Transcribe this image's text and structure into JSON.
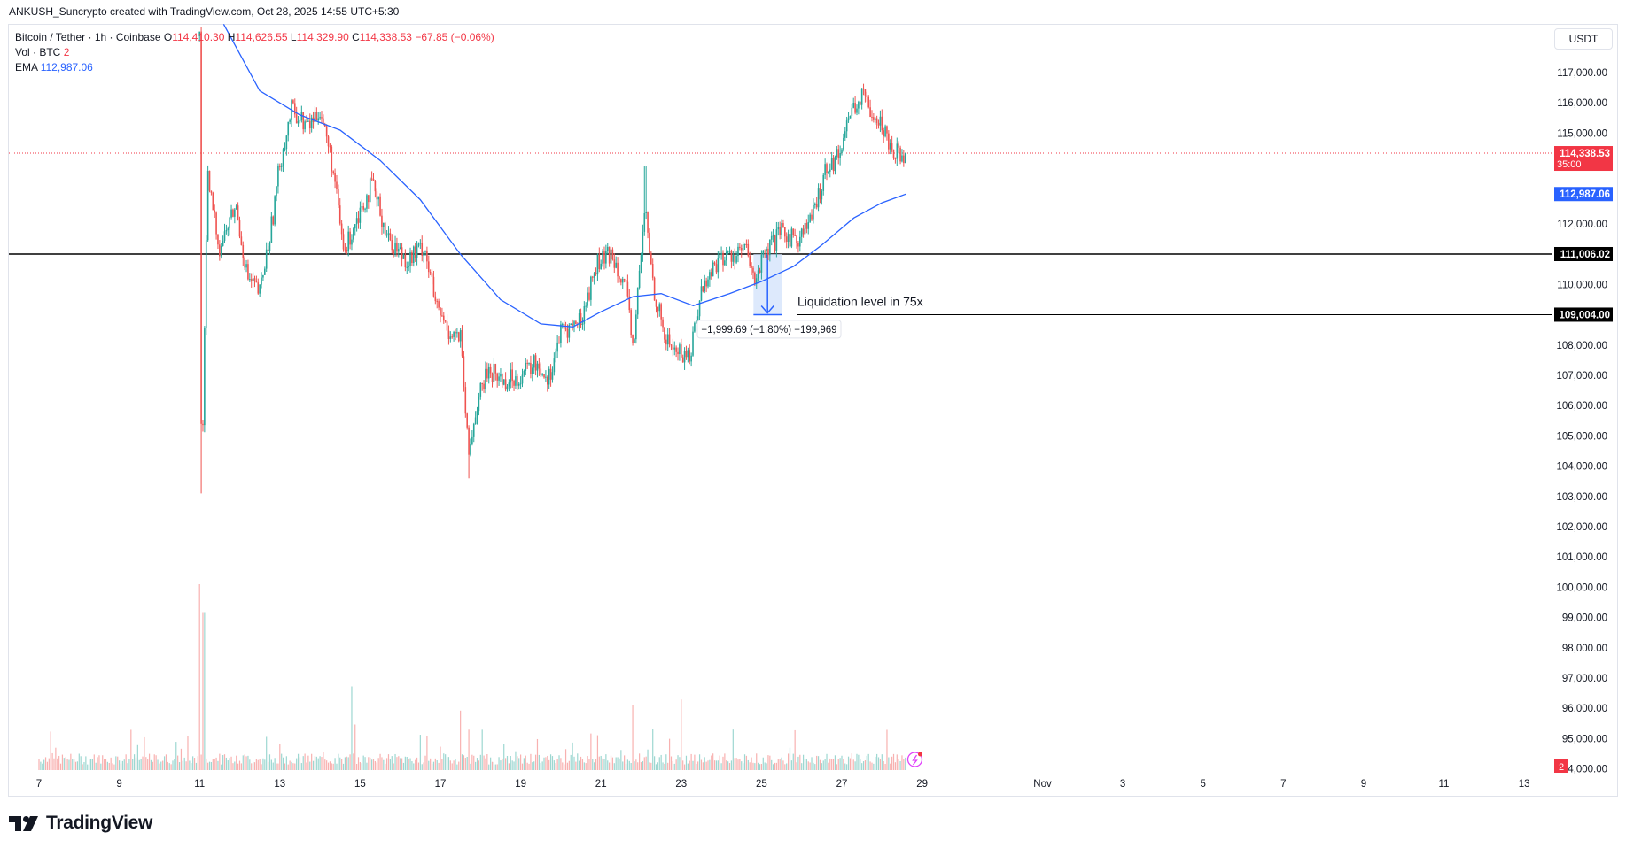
{
  "header": {
    "attribution": "ANKUSH_Suncrypto created with TradingView.com, Oct 28, 2025 14:55 UTC+5:30"
  },
  "legend": {
    "symbol": "Bitcoin / Tether · 1h · Coinbase",
    "o_label": "O",
    "o_value": "114,410.30",
    "h_label": "H",
    "h_value": "114,626.55",
    "l_label": "L",
    "l_value": "114,329.90",
    "c_label": "C",
    "c_value": "114,338.53",
    "change": "−67.85 (−0.06%)",
    "vol_label": "Vol · BTC",
    "vol_value": "2",
    "ema_label": "EMA",
    "ema_value": "112,987.06"
  },
  "currency": "USDT",
  "price_axis": {
    "ticks": [
      "117,000.00",
      "116,000.00",
      "115,000.00",
      "114,000.00",
      "113,000.00",
      "112,000.00",
      "111,000.00",
      "110,000.00",
      "109,000.00",
      "108,000.00",
      "107,000.00",
      "106,000.00",
      "105,000.00",
      "104,000.00",
      "103,000.00",
      "102,000.00",
      "101,000.00",
      "100,000.00",
      "99,000.00",
      "98,000.00",
      "97,000.00",
      "96,000.00",
      "95,000.00",
      "94,000.00"
    ],
    "tick_values": [
      117000,
      116000,
      115000,
      114000,
      113000,
      112000,
      111000,
      110000,
      109000,
      108000,
      107000,
      106000,
      105000,
      104000,
      103000,
      102000,
      101000,
      100000,
      99000,
      98000,
      97000,
      96000,
      95000,
      94000
    ],
    "min": 93100,
    "max": 118500,
    "last_price_label": "114,338.53",
    "countdown": "35:00",
    "ema_label": "112,987.06",
    "level1_label": "111,006.02",
    "level2_label": "109,004.00",
    "volume_badge": "2"
  },
  "time_axis": {
    "labels": [
      "7",
      "9",
      "11",
      "13",
      "15",
      "17",
      "19",
      "21",
      "23",
      "25",
      "27",
      "29",
      "Nov",
      "3",
      "5",
      "7",
      "9",
      "11",
      "13"
    ],
    "label_days": [
      7,
      9,
      11,
      13,
      15,
      17,
      19,
      21,
      23,
      25,
      27,
      29,
      32,
      34,
      36,
      38,
      40,
      42,
      44
    ]
  },
  "annotations": {
    "liquidation_text": "Liquidation level in 75x",
    "measure_text": "−1,999.69 (−1.80%) −199,969"
  },
  "colors": {
    "up": "#26a69a",
    "down": "#ef5350",
    "ema": "#2962ff",
    "price_line": "#f23645",
    "level": "#000000",
    "measure_fill": "#cfe0fb"
  },
  "brand": {
    "name": "TradingView"
  },
  "chart_data": {
    "type": "candlestick",
    "title": "Bitcoin / Tether · 1h · Coinbase",
    "timeframe": "1h",
    "x_range_days": [
      "Oct 7",
      "Nov 13"
    ],
    "last_price": 114338.53,
    "ema_last": 112987.06,
    "horizontal_levels": [
      111006.02,
      109004.0
    ],
    "price_path": [
      {
        "day": 11.0,
        "price": 118200
      },
      {
        "day": 11.05,
        "price": 103100
      },
      {
        "day": 11.2,
        "price": 113500
      },
      {
        "day": 11.5,
        "price": 111200
      },
      {
        "day": 11.9,
        "price": 112600
      },
      {
        "day": 12.2,
        "price": 110200
      },
      {
        "day": 12.5,
        "price": 109700
      },
      {
        "day": 12.8,
        "price": 112000
      },
      {
        "day": 13.0,
        "price": 114000
      },
      {
        "day": 13.3,
        "price": 115800
      },
      {
        "day": 13.7,
        "price": 115200
      },
      {
        "day": 14.0,
        "price": 115800
      },
      {
        "day": 14.3,
        "price": 114000
      },
      {
        "day": 14.6,
        "price": 111000
      },
      {
        "day": 14.9,
        "price": 112200
      },
      {
        "day": 15.3,
        "price": 113300
      },
      {
        "day": 15.7,
        "price": 111500
      },
      {
        "day": 16.2,
        "price": 110800
      },
      {
        "day": 16.6,
        "price": 111300
      },
      {
        "day": 16.9,
        "price": 109200
      },
      {
        "day": 17.2,
        "price": 108500
      },
      {
        "day": 17.5,
        "price": 108200
      },
      {
        "day": 17.7,
        "price": 104300
      },
      {
        "day": 17.9,
        "price": 106000
      },
      {
        "day": 18.2,
        "price": 107200
      },
      {
        "day": 18.6,
        "price": 106800
      },
      {
        "day": 19.0,
        "price": 107000
      },
      {
        "day": 19.4,
        "price": 107400
      },
      {
        "day": 19.7,
        "price": 106900
      },
      {
        "day": 20.0,
        "price": 108400
      },
      {
        "day": 20.5,
        "price": 108800
      },
      {
        "day": 20.9,
        "price": 110700
      },
      {
        "day": 21.3,
        "price": 111000
      },
      {
        "day": 21.6,
        "price": 110000
      },
      {
        "day": 21.8,
        "price": 107900
      },
      {
        "day": 22.1,
        "price": 112500
      },
      {
        "day": 22.3,
        "price": 110000
      },
      {
        "day": 22.6,
        "price": 108200
      },
      {
        "day": 22.9,
        "price": 107800
      },
      {
        "day": 23.2,
        "price": 107600
      },
      {
        "day": 23.5,
        "price": 109800
      },
      {
        "day": 23.9,
        "price": 110800
      },
      {
        "day": 24.3,
        "price": 111000
      },
      {
        "day": 24.6,
        "price": 111200
      },
      {
        "day": 24.8,
        "price": 110100
      },
      {
        "day": 25.1,
        "price": 111000
      },
      {
        "day": 25.5,
        "price": 111700
      },
      {
        "day": 25.9,
        "price": 111500
      },
      {
        "day": 26.3,
        "price": 112300
      },
      {
        "day": 26.6,
        "price": 113900
      },
      {
        "day": 26.9,
        "price": 114200
      },
      {
        "day": 27.2,
        "price": 115700
      },
      {
        "day": 27.5,
        "price": 116200
      },
      {
        "day": 27.8,
        "price": 115700
      },
      {
        "day": 28.1,
        "price": 115000
      },
      {
        "day": 28.3,
        "price": 114400
      },
      {
        "day": 28.6,
        "price": 114338.53
      }
    ],
    "ema_path": [
      {
        "day": 11.6,
        "price": 118600
      },
      {
        "day": 12.5,
        "price": 116400
      },
      {
        "day": 13.5,
        "price": 115600
      },
      {
        "day": 14.5,
        "price": 115100
      },
      {
        "day": 15.5,
        "price": 114100
      },
      {
        "day": 16.5,
        "price": 112800
      },
      {
        "day": 17.5,
        "price": 111000
      },
      {
        "day": 18.5,
        "price": 109500
      },
      {
        "day": 19.5,
        "price": 108700
      },
      {
        "day": 20.3,
        "price": 108600
      },
      {
        "day": 21.0,
        "price": 109100
      },
      {
        "day": 21.8,
        "price": 109600
      },
      {
        "day": 22.5,
        "price": 109700
      },
      {
        "day": 23.3,
        "price": 109300
      },
      {
        "day": 24.2,
        "price": 109700
      },
      {
        "day": 25.0,
        "price": 110100
      },
      {
        "day": 25.8,
        "price": 110600
      },
      {
        "day": 26.5,
        "price": 111300
      },
      {
        "day": 27.3,
        "price": 112200
      },
      {
        "day": 28.0,
        "price": 112700
      },
      {
        "day": 28.6,
        "price": 112987.06
      }
    ],
    "volume_spikes": [
      {
        "day": 11.0,
        "value": 1.0
      },
      {
        "day": 11.1,
        "value": 0.85
      },
      {
        "day": 21.8,
        "value": 0.35
      },
      {
        "day": 17.5,
        "value": 0.32
      },
      {
        "day": 14.8,
        "value": 0.45
      },
      {
        "day": 23.0,
        "value": 0.38
      }
    ]
  }
}
